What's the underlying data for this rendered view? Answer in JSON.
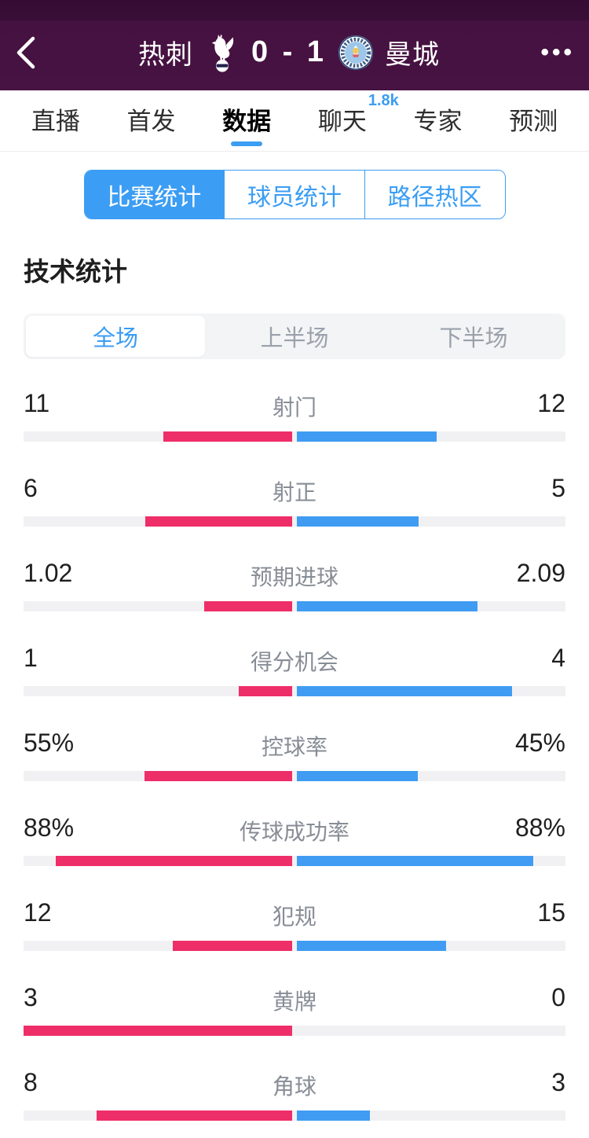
{
  "header": {
    "home_team": "热刺",
    "away_team": "曼城",
    "score": "0 - 1"
  },
  "icons": {
    "more": "•••"
  },
  "nav_tabs": [
    {
      "label": "直播",
      "active": false
    },
    {
      "label": "首发",
      "active": false
    },
    {
      "label": "数据",
      "active": true
    },
    {
      "label": "聊天",
      "active": false,
      "badge": "1.8k"
    },
    {
      "label": "专家",
      "active": false
    },
    {
      "label": "预测",
      "active": false
    }
  ],
  "stat_tabs": [
    {
      "label": "比赛统计",
      "active": true
    },
    {
      "label": "球员统计",
      "active": false
    },
    {
      "label": "路径热区",
      "active": false
    }
  ],
  "section_title": "技术统计",
  "period_tabs": [
    {
      "label": "全场",
      "active": true
    },
    {
      "label": "上半场",
      "active": false
    },
    {
      "label": "下半场",
      "active": false
    }
  ],
  "stats": [
    {
      "label": "射门",
      "home": "11",
      "away": "12"
    },
    {
      "label": "射正",
      "home": "6",
      "away": "5"
    },
    {
      "label": "预期进球",
      "home": "1.02",
      "away": "2.09"
    },
    {
      "label": "得分机会",
      "home": "1",
      "away": "4"
    },
    {
      "label": "控球率",
      "home": "55%",
      "away": "45%"
    },
    {
      "label": "传球成功率",
      "home": "88%",
      "away": "88%"
    },
    {
      "label": "犯规",
      "home": "12",
      "away": "15"
    },
    {
      "label": "黄牌",
      "home": "3",
      "away": "0"
    },
    {
      "label": "角球",
      "home": "8",
      "away": "3"
    }
  ],
  "colors": {
    "home_bar": "#ee2e68",
    "away_bar": "#3f9cf2",
    "accent": "#3b9df3",
    "header_bg": "#451141"
  }
}
